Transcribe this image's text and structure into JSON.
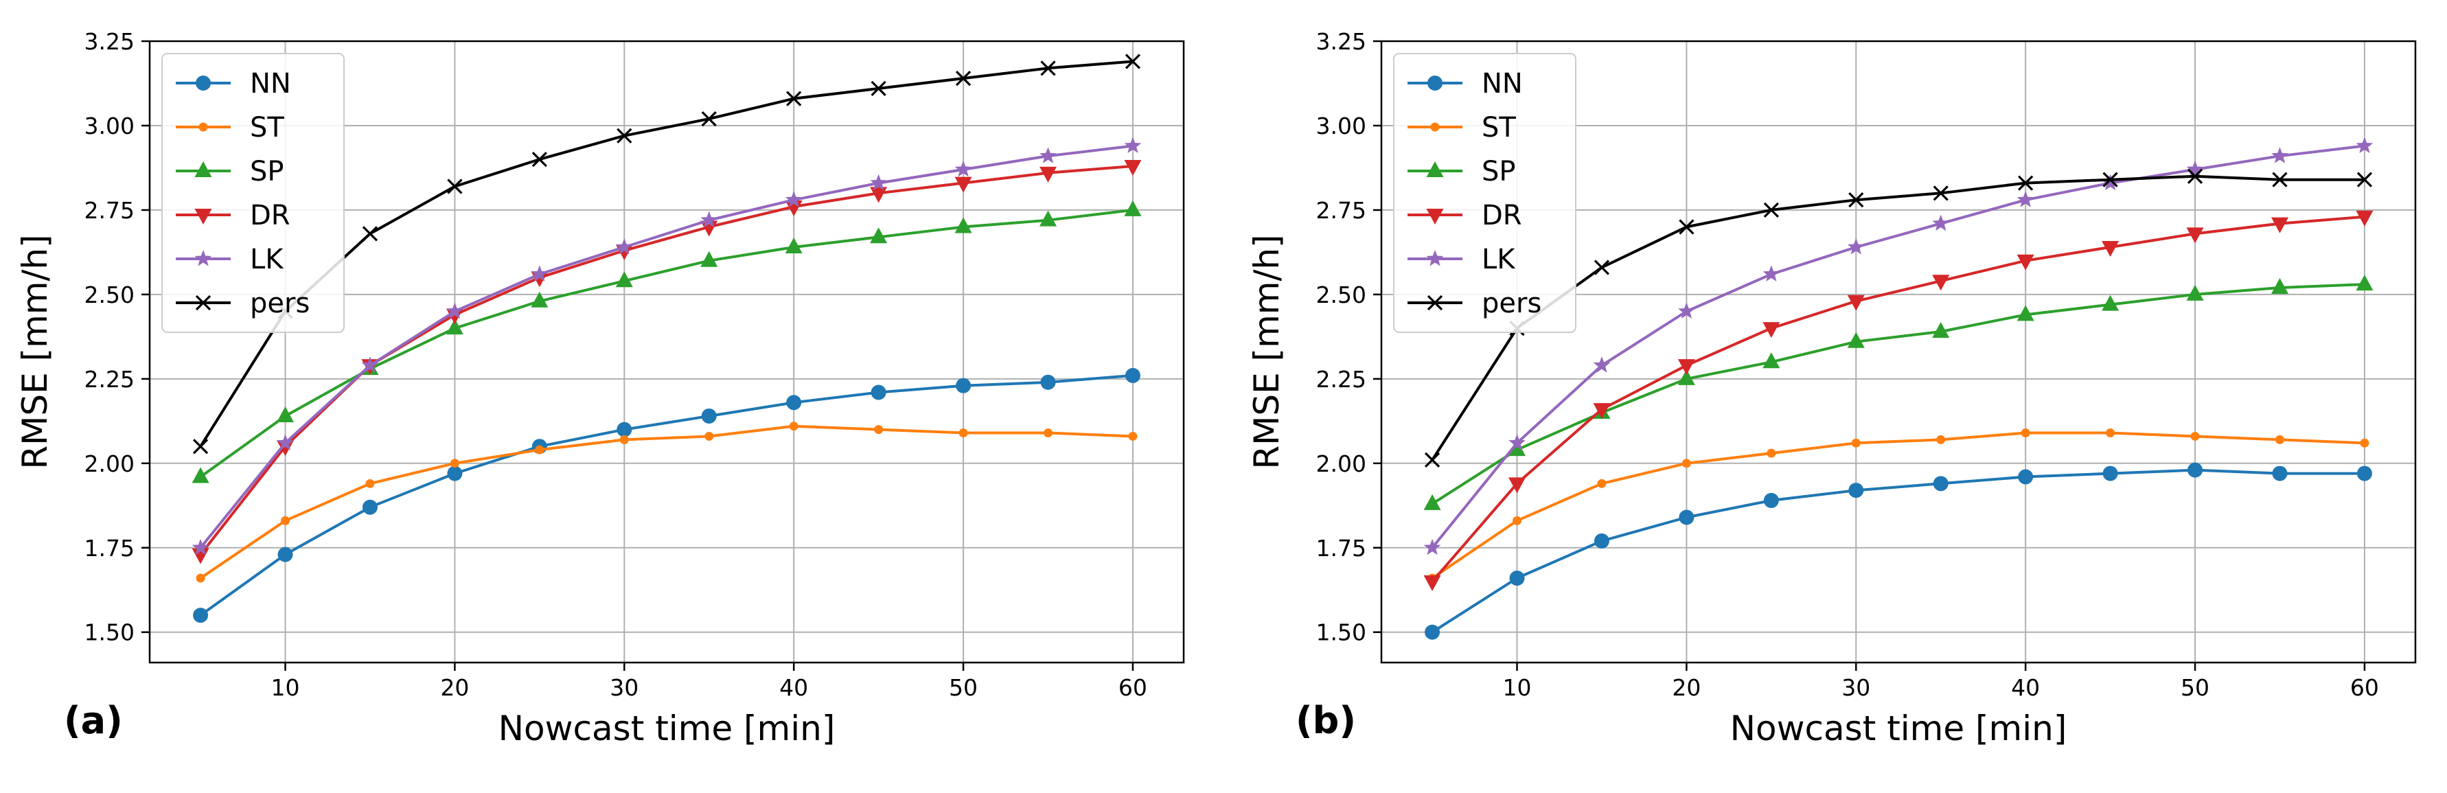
{
  "chart_data": [
    {
      "type": "line",
      "panel_label": "(a)",
      "xlabel": "Nowcast time [min]",
      "ylabel": "RMSE [mm/h]",
      "xlim": [
        2,
        63
      ],
      "ylim": [
        1.41,
        3.25
      ],
      "xticks": [
        10,
        20,
        30,
        40,
        50,
        60
      ],
      "yticks": [
        1.5,
        1.75,
        2.0,
        2.25,
        2.5,
        2.75,
        3.0,
        3.25
      ],
      "ytick_labels": [
        "1.50",
        "1.75",
        "2.00",
        "2.25",
        "2.50",
        "2.75",
        "3.00",
        "3.25"
      ],
      "grid": true,
      "legend_position": "top-left",
      "x": [
        5,
        10,
        15,
        20,
        25,
        30,
        35,
        40,
        45,
        50,
        55,
        60
      ],
      "series": [
        {
          "name": "NN",
          "color": "#1f77b4",
          "marker": "circle",
          "values": [
            1.55,
            1.73,
            1.87,
            1.97,
            2.05,
            2.1,
            2.14,
            2.18,
            2.21,
            2.23,
            2.24,
            2.26
          ]
        },
        {
          "name": "ST",
          "color": "#ff7f0e",
          "marker": "point",
          "values": [
            1.66,
            1.83,
            1.94,
            2.0,
            2.04,
            2.07,
            2.08,
            2.11,
            2.1,
            2.09,
            2.09,
            2.08
          ]
        },
        {
          "name": "SP",
          "color": "#2ca02c",
          "marker": "triangle-up",
          "values": [
            1.96,
            2.14,
            2.28,
            2.4,
            2.48,
            2.54,
            2.6,
            2.64,
            2.67,
            2.7,
            2.72,
            2.75
          ]
        },
        {
          "name": "DR",
          "color": "#d62728",
          "marker": "triangle-down",
          "values": [
            1.73,
            2.05,
            2.29,
            2.44,
            2.55,
            2.63,
            2.7,
            2.76,
            2.8,
            2.83,
            2.86,
            2.88
          ]
        },
        {
          "name": "LK",
          "color": "#9467bd",
          "marker": "star",
          "values": [
            1.75,
            2.06,
            2.29,
            2.45,
            2.56,
            2.64,
            2.72,
            2.78,
            2.83,
            2.87,
            2.91,
            2.94
          ]
        },
        {
          "name": "pers",
          "color": "#000000",
          "marker": "x",
          "values": [
            2.05,
            2.45,
            2.68,
            2.82,
            2.9,
            2.97,
            3.02,
            3.08,
            3.11,
            3.14,
            3.17,
            3.19
          ]
        }
      ]
    },
    {
      "type": "line",
      "panel_label": "(b)",
      "xlabel": "Nowcast time [min]",
      "ylabel": "RMSE [mm/h]",
      "xlim": [
        2,
        63
      ],
      "ylim": [
        1.41,
        3.25
      ],
      "xticks": [
        10,
        20,
        30,
        40,
        50,
        60
      ],
      "yticks": [
        1.5,
        1.75,
        2.0,
        2.25,
        2.5,
        2.75,
        3.0,
        3.25
      ],
      "ytick_labels": [
        "1.50",
        "1.75",
        "2.00",
        "2.25",
        "2.50",
        "2.75",
        "3.00",
        "3.25"
      ],
      "grid": true,
      "legend_position": "top-left",
      "x": [
        5,
        10,
        15,
        20,
        25,
        30,
        35,
        40,
        45,
        50,
        55,
        60
      ],
      "series": [
        {
          "name": "NN",
          "color": "#1f77b4",
          "marker": "circle",
          "values": [
            1.5,
            1.66,
            1.77,
            1.84,
            1.89,
            1.92,
            1.94,
            1.96,
            1.97,
            1.98,
            1.97,
            1.97
          ]
        },
        {
          "name": "ST",
          "color": "#ff7f0e",
          "marker": "point",
          "values": [
            1.66,
            1.83,
            1.94,
            2.0,
            2.03,
            2.06,
            2.07,
            2.09,
            2.09,
            2.08,
            2.07,
            2.06
          ]
        },
        {
          "name": "SP",
          "color": "#2ca02c",
          "marker": "triangle-up",
          "values": [
            1.88,
            2.04,
            2.15,
            2.25,
            2.3,
            2.36,
            2.39,
            2.44,
            2.47,
            2.5,
            2.52,
            2.53
          ]
        },
        {
          "name": "DR",
          "color": "#d62728",
          "marker": "triangle-down",
          "values": [
            1.65,
            1.94,
            2.16,
            2.29,
            2.4,
            2.48,
            2.54,
            2.6,
            2.64,
            2.68,
            2.71,
            2.73
          ]
        },
        {
          "name": "LK",
          "color": "#9467bd",
          "marker": "star",
          "values": [
            1.75,
            2.06,
            2.29,
            2.45,
            2.56,
            2.64,
            2.71,
            2.78,
            2.83,
            2.87,
            2.91,
            2.94
          ]
        },
        {
          "name": "pers",
          "color": "#000000",
          "marker": "x",
          "values": [
            2.01,
            2.4,
            2.58,
            2.7,
            2.75,
            2.78,
            2.8,
            2.83,
            2.84,
            2.85,
            2.84,
            2.84
          ]
        }
      ]
    }
  ]
}
